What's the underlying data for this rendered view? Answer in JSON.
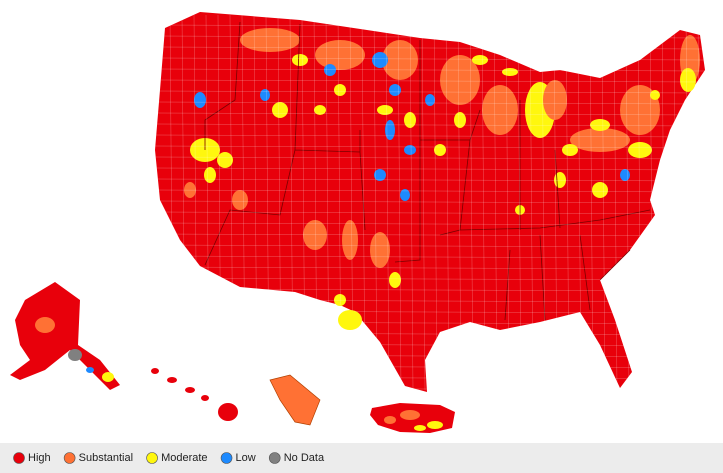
{
  "legend": {
    "items": [
      {
        "label": "High",
        "color": "#e8000b"
      },
      {
        "label": "Substantial",
        "color": "#ff7134"
      },
      {
        "label": "Moderate",
        "color": "#fff70e"
      },
      {
        "label": "Low",
        "color": "#1d8aff"
      },
      {
        "label": "No Data",
        "color": "#808080"
      }
    ]
  }
}
